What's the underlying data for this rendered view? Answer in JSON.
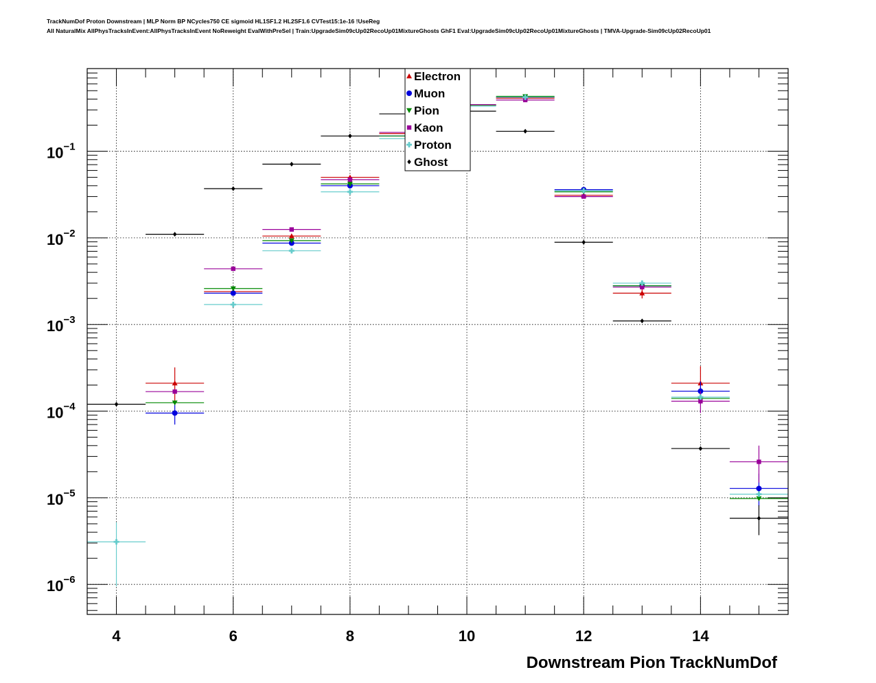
{
  "header": {
    "title_line1": "TrackNumDof Proton Downstream | MLP Norm BP NCycles750 CE sigmoid HL1SF1.2 HL2SF1.6 CVTest15:1e-16 !UseReg",
    "title_line2": "All NaturalMix AllPhysTracksInEvent:AllPhysTracksInEvent NoReweight EvalWithPreSel | Train:UpgradeSim09cUp02RecoUp01MixtureGhosts GhF1 Eval:UpgradeSim09cUp02RecoUp01MixtureGhosts | TMVA-Upgrade-Sim09cUp02RecoUp01"
  },
  "chart_data": {
    "type": "scatter",
    "xlabel": "Downstream Pion TrackNumDof",
    "ylabel": "",
    "xlim": [
      3.5,
      15.5
    ],
    "ylim": [
      4.5e-07,
      0.9
    ],
    "yscale": "log",
    "grid": true,
    "legend_position": "top-center",
    "x_ticks": [
      4,
      6,
      8,
      10,
      12,
      14
    ],
    "y_ticks": [
      {
        "value": 1e-06,
        "base": "10",
        "exp": "−6"
      },
      {
        "value": 1e-05,
        "base": "10",
        "exp": "−5"
      },
      {
        "value": 0.0001,
        "base": "10",
        "exp": "−4"
      },
      {
        "value": 0.001,
        "base": "10",
        "exp": "−3"
      },
      {
        "value": 0.01,
        "base": "10",
        "exp": "−2"
      },
      {
        "value": 0.1,
        "base": "10",
        "exp": "−1"
      }
    ],
    "series": [
      {
        "name": "Electron",
        "color": "#cc0000",
        "marker": "triangle-up",
        "points": [
          {
            "x": 5,
            "y": 0.00021,
            "lo": 0.00013,
            "hi": 0.00032
          },
          {
            "x": 6,
            "y": 0.0024
          },
          {
            "x": 7,
            "y": 0.0105
          },
          {
            "x": 8,
            "y": 0.05
          },
          {
            "x": 9,
            "y": 0.16
          },
          {
            "x": 10,
            "y": 0.34
          },
          {
            "x": 11,
            "y": 0.41
          },
          {
            "x": 12,
            "y": 0.031
          },
          {
            "x": 13,
            "y": 0.0023,
            "lo": 0.002,
            "hi": 0.0027
          },
          {
            "x": 14,
            "y": 0.00021,
            "lo": 0.00013,
            "hi": 0.00033
          }
        ]
      },
      {
        "name": "Muon",
        "color": "#0000dd",
        "marker": "circle",
        "points": [
          {
            "x": 5,
            "y": 9.5e-05,
            "lo": 7e-05,
            "hi": 0.00012
          },
          {
            "x": 6,
            "y": 0.0023
          },
          {
            "x": 7,
            "y": 0.0087
          },
          {
            "x": 8,
            "y": 0.04
          },
          {
            "x": 9,
            "y": 0.15
          },
          {
            "x": 10,
            "y": 0.34
          },
          {
            "x": 11,
            "y": 0.42
          },
          {
            "x": 12,
            "y": 0.036
          },
          {
            "x": 13,
            "y": 0.0028
          },
          {
            "x": 14,
            "y": 0.00017,
            "lo": 0.00012,
            "hi": 0.00022
          },
          {
            "x": 15,
            "y": 1.28e-05,
            "lo": 8e-06,
            "hi": 1.9e-05
          }
        ]
      },
      {
        "name": "Pion",
        "color": "#008800",
        "marker": "triangle-down",
        "points": [
          {
            "x": 5,
            "y": 0.000125
          },
          {
            "x": 6,
            "y": 0.0026
          },
          {
            "x": 7,
            "y": 0.0093
          },
          {
            "x": 8,
            "y": 0.042
          },
          {
            "x": 9,
            "y": 0.15
          },
          {
            "x": 10,
            "y": 0.34
          },
          {
            "x": 11,
            "y": 0.43
          },
          {
            "x": 12,
            "y": 0.034
          },
          {
            "x": 13,
            "y": 0.0028
          },
          {
            "x": 14,
            "y": 0.00014
          },
          {
            "x": 15,
            "y": 9.8e-06
          }
        ]
      },
      {
        "name": "Kaon",
        "color": "#990099",
        "marker": "square",
        "points": [
          {
            "x": 5,
            "y": 0.000168
          },
          {
            "x": 6,
            "y": 0.0044
          },
          {
            "x": 7,
            "y": 0.0125
          },
          {
            "x": 8,
            "y": 0.047
          },
          {
            "x": 9,
            "y": 0.165
          },
          {
            "x": 10,
            "y": 0.345
          },
          {
            "x": 11,
            "y": 0.39
          },
          {
            "x": 12,
            "y": 0.03
          },
          {
            "x": 13,
            "y": 0.0027
          },
          {
            "x": 14,
            "y": 0.00013,
            "lo": 9.5e-05,
            "hi": 0.00017
          },
          {
            "x": 15,
            "y": 2.6e-05,
            "lo": 1.5e-05,
            "hi": 4e-05
          }
        ]
      },
      {
        "name": "Proton",
        "color": "#66cccc",
        "marker": "cross",
        "points": [
          {
            "x": 4,
            "y": 3.1e-06,
            "lo": 9.5e-07,
            "hi": 5.2e-06
          },
          {
            "x": 6,
            "y": 0.0017
          },
          {
            "x": 7,
            "y": 0.0071
          },
          {
            "x": 8,
            "y": 0.034
          },
          {
            "x": 9,
            "y": 0.14
          },
          {
            "x": 10,
            "y": 0.33
          },
          {
            "x": 11,
            "y": 0.42
          },
          {
            "x": 12,
            "y": 0.035
          },
          {
            "x": 13,
            "y": 0.003
          },
          {
            "x": 14,
            "y": 0.000145
          },
          {
            "x": 15,
            "y": 1.1e-05
          }
        ]
      },
      {
        "name": "Ghost",
        "color": "#000000",
        "marker": "diamond",
        "points": [
          {
            "x": 4,
            "y": 0.00012
          },
          {
            "x": 5,
            "y": 0.011
          },
          {
            "x": 6,
            "y": 0.037
          },
          {
            "x": 7,
            "y": 0.071
          },
          {
            "x": 8,
            "y": 0.15
          },
          {
            "x": 9,
            "y": 0.27
          },
          {
            "x": 10,
            "y": 0.29
          },
          {
            "x": 11,
            "y": 0.17
          },
          {
            "x": 12,
            "y": 0.0089
          },
          {
            "x": 13,
            "y": 0.0011
          },
          {
            "x": 14,
            "y": 3.7e-05
          },
          {
            "x": 15,
            "y": 5.8e-06,
            "lo": 3.7e-06,
            "hi": 8.2e-06
          }
        ]
      }
    ]
  }
}
